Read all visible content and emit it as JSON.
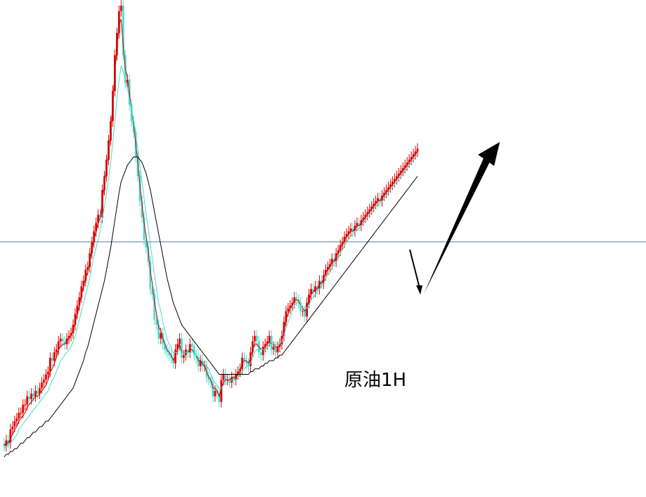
{
  "chart_data": {
    "type": "candlestick",
    "annotation_text": "原油1H",
    "x": [
      0,
      1,
      2,
      3,
      4,
      5,
      6,
      7,
      8,
      9,
      10,
      11,
      12,
      13,
      14,
      15,
      16,
      17,
      18,
      19,
      20,
      21,
      22,
      23,
      24,
      25,
      26,
      27,
      28,
      29,
      30,
      31,
      32,
      33,
      34,
      35,
      36,
      37,
      38,
      39,
      40,
      41,
      42,
      43,
      44,
      45,
      46,
      47,
      48,
      49,
      50,
      51,
      52,
      53,
      54,
      55,
      56,
      57,
      58,
      59,
      60,
      61,
      62,
      63,
      64,
      65,
      66,
      67,
      68,
      69,
      70,
      71,
      72,
      73,
      74,
      75,
      76,
      77,
      78,
      79,
      80,
      81,
      82,
      83,
      84,
      85,
      86,
      87,
      88,
      89,
      90,
      91,
      92,
      93,
      94,
      95,
      96,
      97,
      98,
      99,
      100,
      101,
      102,
      103,
      104,
      105,
      106,
      107,
      108,
      109,
      110,
      111,
      112,
      113,
      114,
      115,
      116,
      117,
      118,
      119,
      120,
      121,
      122,
      123,
      124,
      125,
      126,
      127,
      128,
      129,
      130,
      131,
      132,
      133,
      134,
      135,
      136,
      137,
      138,
      139,
      140,
      141,
      142,
      143,
      144,
      145,
      146,
      147,
      148,
      149,
      150,
      151,
      152,
      153,
      154,
      155,
      156,
      157,
      158,
      159,
      160,
      161,
      162,
      163,
      164,
      165,
      166,
      167,
      168,
      169,
      170,
      171,
      172,
      173,
      174,
      175,
      176,
      177,
      178,
      179,
      180,
      181,
      182,
      183,
      184,
      185,
      186,
      187,
      188,
      189,
      190,
      191,
      192,
      193,
      194,
      195,
      196,
      197,
      198
    ],
    "close": [
      -56,
      -54,
      -55,
      -50,
      -49,
      -47,
      -46,
      -44,
      -44,
      -41,
      -41,
      -38,
      -39,
      -37,
      -38,
      -36,
      -37,
      -35,
      -33,
      -32,
      -30,
      -29,
      -24,
      -25,
      -22,
      -21,
      -18,
      -17,
      -18,
      -19,
      -17,
      -16,
      -15,
      -12,
      -8,
      -5,
      -2,
      2,
      4,
      8,
      9,
      14,
      18,
      22,
      25,
      28,
      27,
      37,
      42,
      48,
      55,
      62,
      73,
      86,
      94,
      102,
      104,
      86,
      76,
      77,
      68,
      62,
      58,
      49,
      42,
      33,
      27,
      19,
      16,
      11,
      1,
      -1,
      -10,
      -12,
      -17,
      -15,
      -19,
      -21,
      -22,
      -23,
      -24,
      -26,
      -21,
      -19,
      -17,
      -24,
      -23,
      -21,
      -22,
      -19,
      -20,
      -23,
      -24,
      -27,
      -25,
      -27,
      -27,
      -31,
      -32,
      -33,
      -38,
      -36,
      -37,
      -40,
      -32,
      -30,
      -32,
      -32,
      -33,
      -31,
      -32,
      -30,
      -29,
      -28,
      -24,
      -25,
      -26,
      -27,
      -22,
      -18,
      -16,
      -18,
      -22,
      -23,
      -20,
      -19,
      -18,
      -16,
      -21,
      -20,
      -22,
      -20,
      -19,
      -16,
      -11,
      -7,
      -6,
      -5,
      -4,
      -2,
      -3,
      -4,
      -7,
      -7,
      -9,
      -4,
      -1,
      1,
      0,
      2,
      1,
      4,
      3,
      6,
      8,
      9,
      10,
      12,
      11,
      14,
      15,
      17,
      18,
      20,
      21,
      22,
      23,
      22,
      24,
      25,
      24,
      26,
      27,
      28,
      29,
      30,
      31,
      32,
      33,
      34,
      33,
      35,
      36,
      37,
      38,
      39,
      40,
      41,
      42,
      43,
      44,
      45,
      46,
      47,
      48,
      49,
      50,
      51,
      52
    ],
    "series": [
      {
        "color": "#c00000",
        "values": [
          -56,
          -55,
          -55,
          -53,
          -52,
          -50,
          -49,
          -47,
          -46,
          -45,
          -44,
          -42,
          -41,
          -40,
          -39,
          -38,
          -38,
          -37,
          -36,
          -35,
          -34,
          -32,
          -29,
          -28,
          -26,
          -24,
          -21,
          -20,
          -19,
          -19,
          -18,
          -17,
          -16,
          -14,
          -11,
          -8,
          -5,
          -1,
          2,
          5,
          7,
          11,
          15,
          19,
          22,
          25,
          27,
          33,
          39,
          45,
          51,
          58,
          68,
          80,
          89,
          97,
          99,
          90,
          81,
          78,
          72,
          66,
          61,
          54,
          47,
          39,
          32,
          25,
          20,
          15,
          7,
          3,
          -4,
          -8,
          -13,
          -14,
          -17,
          -19,
          -21,
          -22,
          -23,
          -25,
          -23,
          -21,
          -19,
          -22,
          -22,
          -22,
          -22,
          -21,
          -21,
          -22,
          -23,
          -25,
          -25,
          -26,
          -27,
          -29,
          -31,
          -32,
          -35,
          -35,
          -36,
          -38,
          -35,
          -33,
          -32,
          -32,
          -32,
          -31,
          -31,
          -31,
          -30,
          -29,
          -26,
          -25,
          -25,
          -26,
          -24,
          -21,
          -19,
          -19,
          -20,
          -21,
          -21,
          -20,
          -19,
          -18,
          -19,
          -19,
          -20,
          -20,
          -20,
          -18,
          -14,
          -10,
          -8,
          -6,
          -5,
          -3,
          -3,
          -3,
          -5,
          -6,
          -7,
          -6,
          -3,
          -1,
          0,
          1,
          1,
          3,
          3,
          5,
          7,
          8,
          9,
          11,
          11,
          13,
          14,
          16,
          17,
          19,
          20,
          21,
          22,
          22,
          23,
          24,
          24,
          25,
          26,
          27,
          28,
          29,
          30,
          31,
          32,
          33,
          33,
          34,
          35,
          36,
          37,
          38,
          39,
          40,
          41,
          42,
          43,
          44,
          45,
          46,
          47,
          48,
          49,
          50,
          51
        ]
      },
      {
        "color": "#40e0d0",
        "values": [
          -57,
          -56,
          -56,
          -55,
          -54,
          -53,
          -52,
          -50,
          -49,
          -48,
          -47,
          -46,
          -45,
          -44,
          -43,
          -42,
          -41,
          -40,
          -39,
          -38,
          -37,
          -36,
          -34,
          -32,
          -31,
          -29,
          -27,
          -25,
          -24,
          -23,
          -22,
          -21,
          -20,
          -18,
          -16,
          -13,
          -10,
          -7,
          -4,
          -1,
          2,
          5,
          9,
          13,
          16,
          19,
          22,
          27,
          31,
          36,
          41,
          47,
          54,
          62,
          70,
          77,
          82,
          80,
          77,
          74,
          70,
          66,
          62,
          57,
          52,
          46,
          40,
          34,
          28,
          23,
          17,
          12,
          6,
          1,
          -4,
          -7,
          -11,
          -14,
          -17,
          -19,
          -20,
          -22,
          -22,
          -22,
          -21,
          -22,
          -22,
          -22,
          -22,
          -22,
          -22,
          -22,
          -23,
          -24,
          -24,
          -25,
          -26,
          -27,
          -28,
          -30,
          -32,
          -33,
          -34,
          -35,
          -35,
          -34,
          -33,
          -33,
          -33,
          -32,
          -32,
          -32,
          -31,
          -30,
          -29,
          -28,
          -27,
          -27,
          -26,
          -24,
          -22,
          -21,
          -21,
          -21,
          -21,
          -21,
          -20,
          -19,
          -19,
          -19,
          -19,
          -19,
          -19,
          -18,
          -16,
          -13,
          -11,
          -9,
          -7,
          -5,
          -4,
          -4,
          -5,
          -6,
          -6,
          -6,
          -5,
          -3,
          -2,
          -1,
          0,
          1,
          2,
          3,
          5,
          6,
          7,
          9,
          10,
          11,
          12,
          14,
          15,
          17,
          18,
          19,
          20,
          21,
          22,
          23,
          23,
          24,
          25,
          26,
          27,
          28,
          29,
          30,
          31,
          32,
          32,
          33,
          34,
          35,
          36,
          37,
          38,
          39,
          40,
          41,
          42,
          43,
          44,
          45,
          46,
          47,
          48,
          49,
          50
        ]
      },
      {
        "color": "#000000",
        "values": [
          -60,
          -59,
          -59,
          -58,
          -58,
          -57,
          -57,
          -56,
          -55,
          -55,
          -54,
          -53,
          -53,
          -52,
          -51,
          -51,
          -50,
          -49,
          -49,
          -48,
          -47,
          -47,
          -46,
          -45,
          -44,
          -43,
          -42,
          -41,
          -40,
          -39,
          -38,
          -37,
          -36,
          -35,
          -33,
          -31,
          -29,
          -27,
          -25,
          -22,
          -20,
          -17,
          -14,
          -11,
          -8,
          -5,
          -2,
          1,
          4,
          8,
          12,
          16,
          21,
          26,
          31,
          36,
          40,
          42,
          44,
          46,
          47,
          48,
          49,
          49,
          49,
          48,
          47,
          45,
          43,
          40,
          37,
          33,
          29,
          25,
          21,
          17,
          13,
          9,
          5,
          2,
          -1,
          -4,
          -6,
          -8,
          -10,
          -12,
          -13,
          -14,
          -15,
          -16,
          -17,
          -18,
          -19,
          -20,
          -21,
          -22,
          -23,
          -24,
          -25,
          -26,
          -27,
          -28,
          -29,
          -30,
          -30,
          -30,
          -30,
          -30,
          -30,
          -30,
          -30,
          -30,
          -30,
          -30,
          -30,
          -30,
          -30,
          -30,
          -29,
          -29,
          -28,
          -28,
          -28,
          -27,
          -27,
          -26,
          -26,
          -25,
          -25,
          -25,
          -24,
          -24,
          -23,
          -23,
          -22,
          -21,
          -20,
          -19,
          -18,
          -17,
          -16,
          -15,
          -14,
          -13,
          -12,
          -11,
          -10,
          -9,
          -8,
          -7,
          -6,
          -5,
          -4,
          -3,
          -2,
          -1,
          0,
          1,
          2,
          3,
          4,
          5,
          6,
          7,
          8,
          9,
          10,
          11,
          12,
          13,
          14,
          15,
          16,
          17,
          18,
          19,
          20,
          21,
          22,
          23,
          24,
          25,
          26,
          27,
          28,
          29,
          30,
          31,
          32,
          33,
          34,
          35,
          36,
          37,
          38,
          39,
          40,
          41,
          42
        ]
      }
    ],
    "horizontal_line": {
      "value": 0,
      "color": "#4f7aa8"
    },
    "arrows": [
      {
        "kind": "short-down",
        "color": "#000000"
      },
      {
        "kind": "long-up",
        "color": "#000000"
      }
    ],
    "colors": {
      "up": "#e00000",
      "down": "#40e0d0",
      "background": "#ffffff"
    }
  }
}
